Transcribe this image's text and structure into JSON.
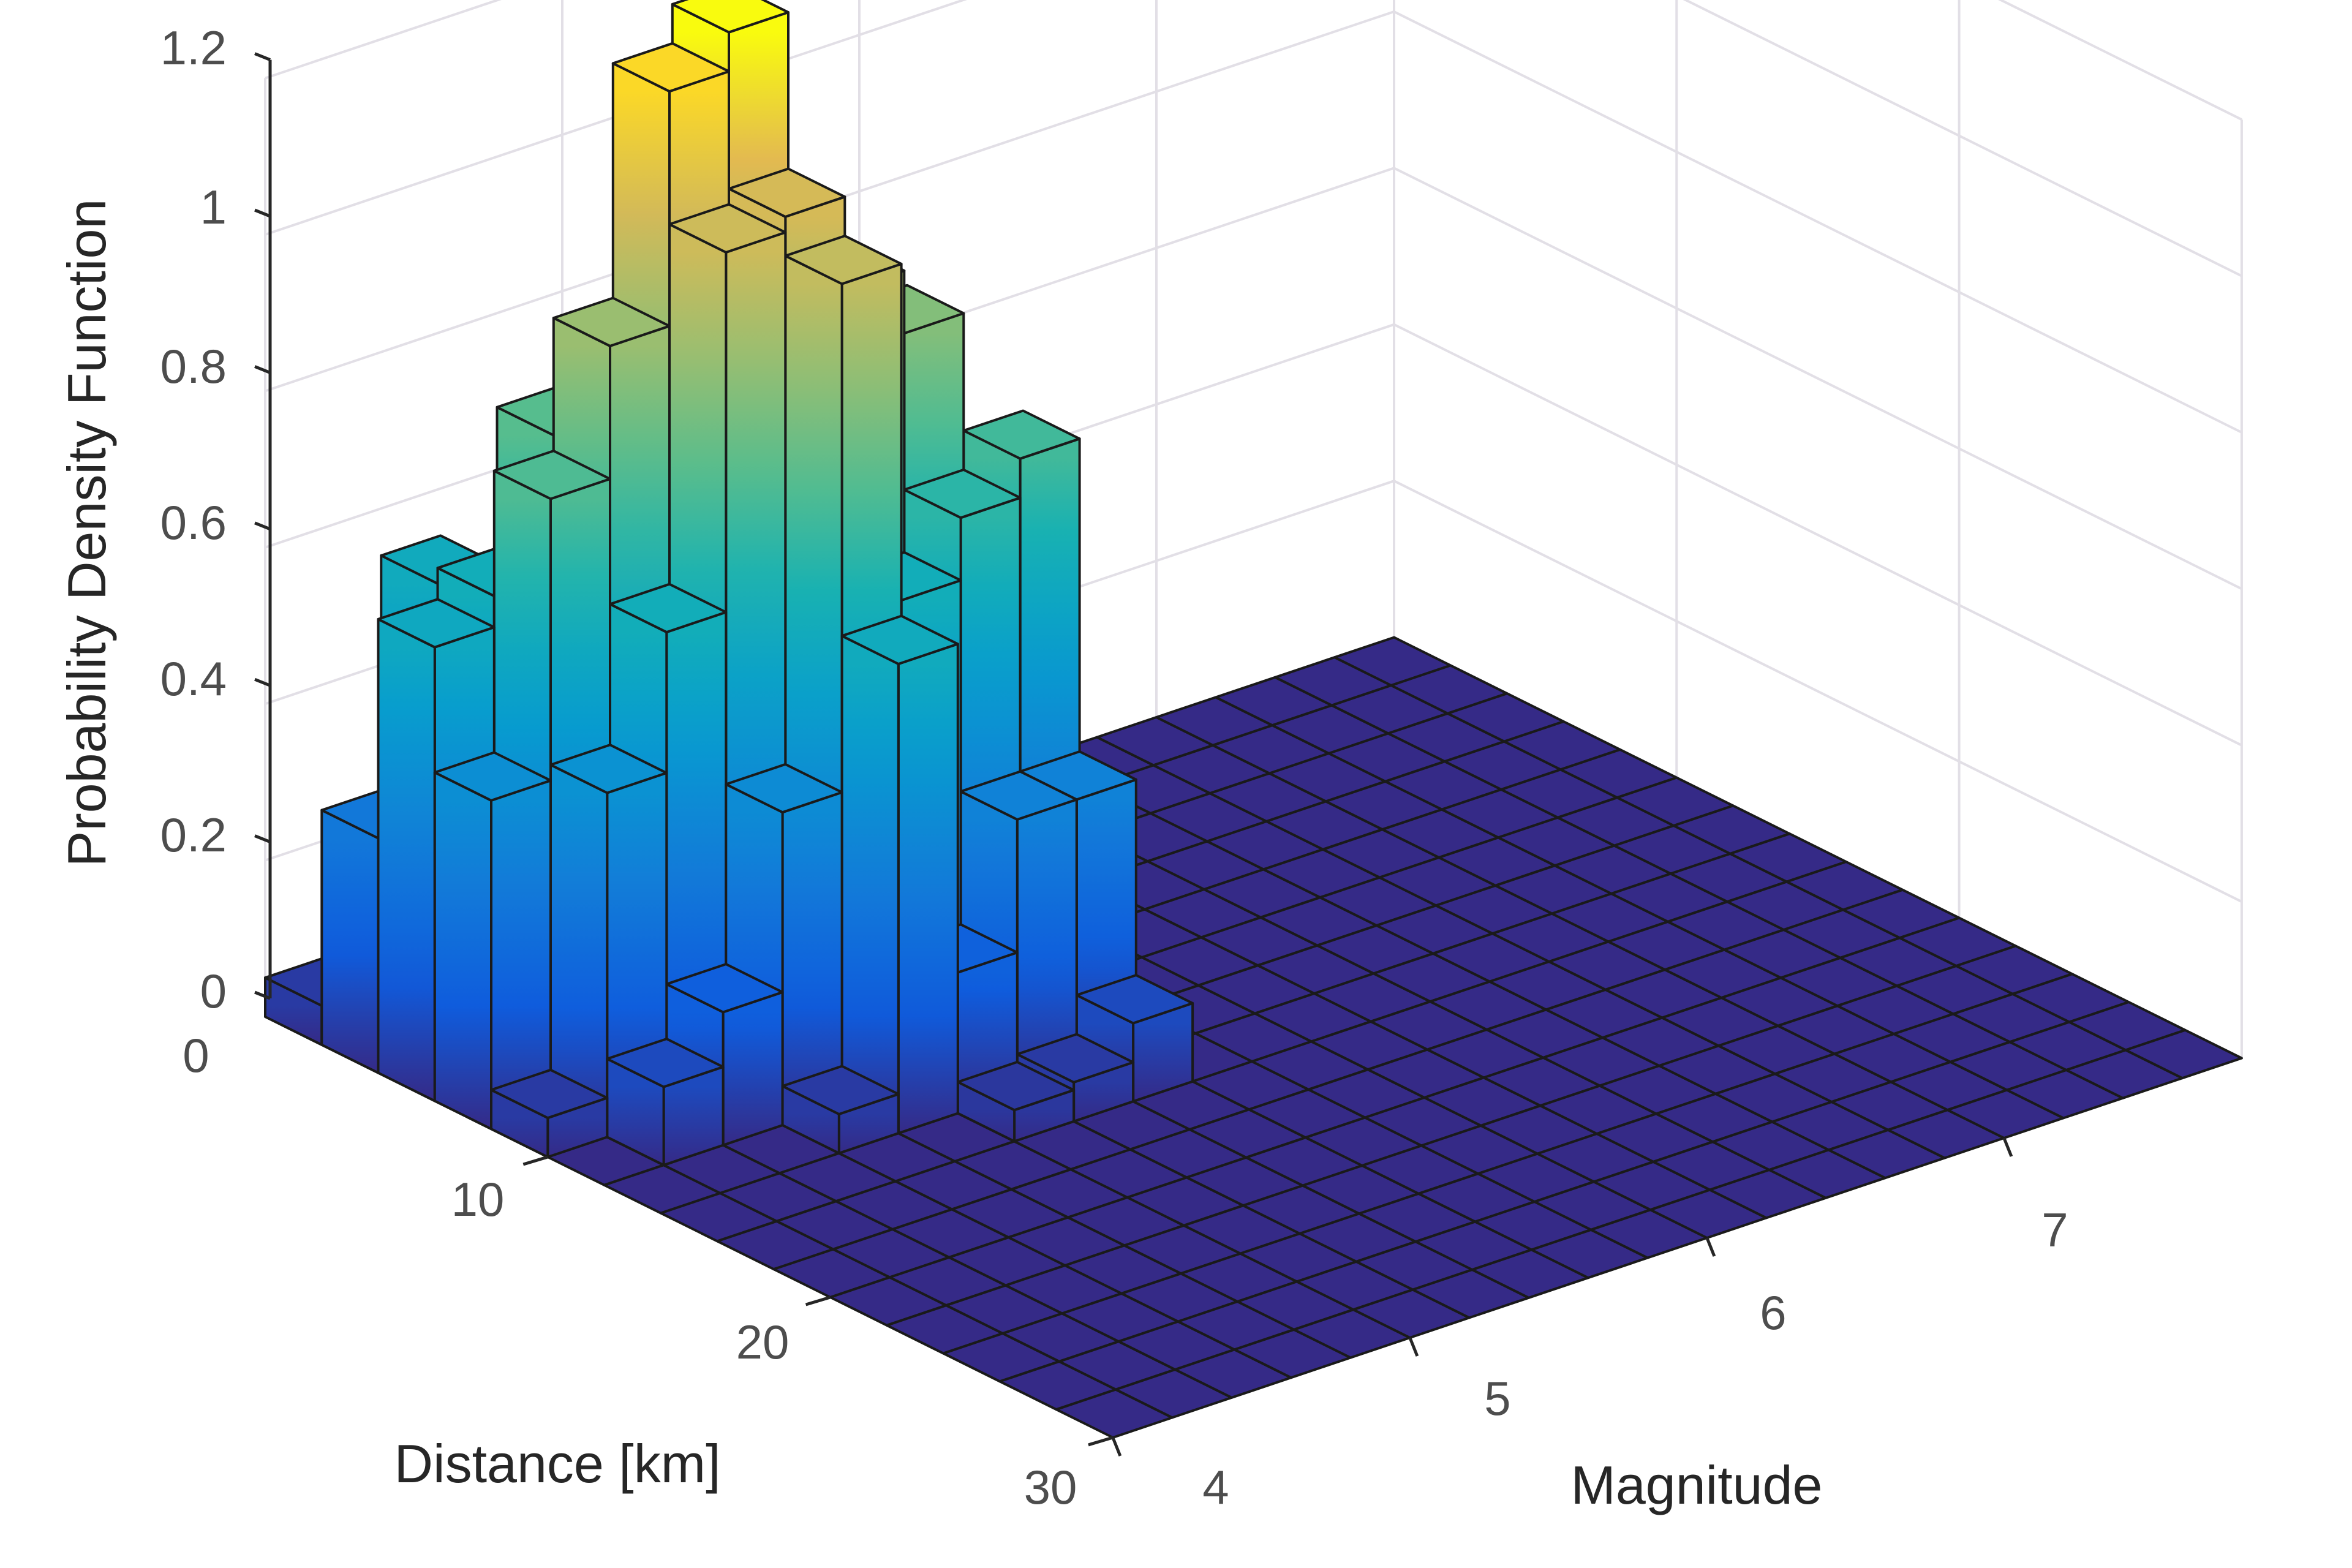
{
  "chart_data": {
    "type": "bar3d",
    "title": "",
    "xlabel": "Magnitude",
    "ylabel": "Distance [km]",
    "zlabel": "Probability Density Function",
    "x_ticks": [
      "4",
      "5",
      "6",
      "7"
    ],
    "y_ticks": [
      "0",
      "10",
      "20",
      "30"
    ],
    "z_ticks": [
      "0",
      "0.2",
      "0.4",
      "0.6",
      "0.8",
      "1",
      "1.2"
    ],
    "xlim": [
      4,
      7.8
    ],
    "ylim": [
      0,
      30
    ],
    "zlim": [
      0,
      1.2
    ],
    "x_bin_width": 0.2,
    "y_bin_width": 2,
    "grid": true,
    "colormap": "parula",
    "floor_color": "#352a87",
    "edge_color": "#1a1a1a",
    "bars": [
      {
        "distance_bin": [
          0,
          2
        ],
        "magnitude_bin": [
          4.0,
          4.2
        ],
        "pdf": 0.05
      },
      {
        "distance_bin": [
          2,
          4
        ],
        "magnitude_bin": [
          4.0,
          4.2
        ],
        "pdf": 0.3
      },
      {
        "distance_bin": [
          2,
          4
        ],
        "magnitude_bin": [
          4.2,
          4.4
        ],
        "pdf": 0.6
      },
      {
        "distance_bin": [
          4,
          6
        ],
        "magnitude_bin": [
          4.0,
          4.2
        ],
        "pdf": 0.58
      },
      {
        "distance_bin": [
          4,
          6
        ],
        "magnitude_bin": [
          4.2,
          4.4
        ],
        "pdf": 0.62
      },
      {
        "distance_bin": [
          4,
          6
        ],
        "magnitude_bin": [
          4.4,
          4.6
        ],
        "pdf": 0.8
      },
      {
        "distance_bin": [
          4,
          6
        ],
        "magnitude_bin": [
          4.6,
          4.8
        ],
        "pdf": 0.88
      },
      {
        "distance_bin": [
          6,
          8
        ],
        "magnitude_bin": [
          4.0,
          4.2
        ],
        "pdf": 0.42
      },
      {
        "distance_bin": [
          6,
          8
        ],
        "magnitude_bin": [
          4.2,
          4.4
        ],
        "pdf": 0.78
      },
      {
        "distance_bin": [
          6,
          8
        ],
        "magnitude_bin": [
          4.4,
          4.6
        ],
        "pdf": 0.95
      },
      {
        "distance_bin": [
          6,
          8
        ],
        "magnitude_bin": [
          4.6,
          4.8
        ],
        "pdf": 1.25
      },
      {
        "distance_bin": [
          6,
          8
        ],
        "magnitude_bin": [
          4.8,
          5.0
        ],
        "pdf": 1.3
      },
      {
        "distance_bin": [
          8,
          10
        ],
        "magnitude_bin": [
          4.0,
          4.2
        ],
        "pdf": 0.05
      },
      {
        "distance_bin": [
          8,
          10
        ],
        "magnitude_bin": [
          4.2,
          4.4
        ],
        "pdf": 0.44
      },
      {
        "distance_bin": [
          8,
          10
        ],
        "magnitude_bin": [
          4.4,
          4.6
        ],
        "pdf": 0.62
      },
      {
        "distance_bin": [
          8,
          10
        ],
        "magnitude_bin": [
          4.6,
          4.8
        ],
        "pdf": 1.08
      },
      {
        "distance_bin": [
          8,
          10
        ],
        "magnitude_bin": [
          4.8,
          5.0
        ],
        "pdf": 1.1
      },
      {
        "distance_bin": [
          8,
          10
        ],
        "magnitude_bin": [
          5.0,
          5.2
        ],
        "pdf": 0.98
      },
      {
        "distance_bin": [
          8,
          10
        ],
        "magnitude_bin": [
          5.2,
          5.4
        ],
        "pdf": 0.9
      },
      {
        "distance_bin": [
          10,
          12
        ],
        "magnitude_bin": [
          4.2,
          4.4
        ],
        "pdf": 0.1
      },
      {
        "distance_bin": [
          10,
          12
        ],
        "magnitude_bin": [
          4.4,
          4.6
        ],
        "pdf": 0.17
      },
      {
        "distance_bin": [
          10,
          12
        ],
        "magnitude_bin": [
          4.6,
          4.8
        ],
        "pdf": 0.4
      },
      {
        "distance_bin": [
          10,
          12
        ],
        "magnitude_bin": [
          4.8,
          5.0
        ],
        "pdf": 1.05
      },
      {
        "distance_bin": [
          10,
          12
        ],
        "magnitude_bin": [
          5.0,
          5.2
        ],
        "pdf": 0.62
      },
      {
        "distance_bin": [
          10,
          12
        ],
        "magnitude_bin": [
          5.2,
          5.4
        ],
        "pdf": 0.7
      },
      {
        "distance_bin": [
          10,
          12
        ],
        "magnitude_bin": [
          5.4,
          5.6
        ],
        "pdf": 0.75
      },
      {
        "distance_bin": [
          12,
          14
        ],
        "magnitude_bin": [
          4.6,
          4.8
        ],
        "pdf": 0.05
      },
      {
        "distance_bin": [
          12,
          14
        ],
        "magnitude_bin": [
          4.8,
          5.0
        ],
        "pdf": 0.6
      },
      {
        "distance_bin": [
          12,
          14
        ],
        "magnitude_bin": [
          5.0,
          5.2
        ],
        "pdf": 0.18
      },
      {
        "distance_bin": [
          12,
          14
        ],
        "magnitude_bin": [
          5.2,
          5.4
        ],
        "pdf": 0.35
      },
      {
        "distance_bin": [
          12,
          14
        ],
        "magnitude_bin": [
          5.4,
          5.6
        ],
        "pdf": 0.35
      },
      {
        "distance_bin": [
          14,
          16
        ],
        "magnitude_bin": [
          5.0,
          5.2
        ],
        "pdf": 0.04
      },
      {
        "distance_bin": [
          14,
          16
        ],
        "magnitude_bin": [
          5.2,
          5.4
        ],
        "pdf": 0.05
      },
      {
        "distance_bin": [
          14,
          16
        ],
        "magnitude_bin": [
          5.4,
          5.6
        ],
        "pdf": 0.1
      }
    ]
  },
  "axes": {
    "z_axis_label": "Probability Density Function",
    "distance_axis_label": "Distance [km]",
    "magnitude_axis_label": "Magnitude",
    "z_ticks": [
      "0",
      "0.2",
      "0.4",
      "0.6",
      "0.8",
      "1",
      "1.2"
    ],
    "distance_ticks": [
      "0",
      "10",
      "20",
      "30"
    ],
    "magnitude_ticks": [
      "4",
      "5",
      "6",
      "7"
    ]
  }
}
